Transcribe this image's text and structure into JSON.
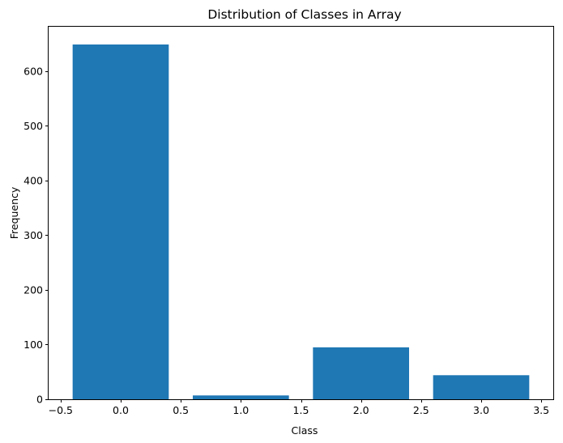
{
  "chart_data": {
    "type": "bar",
    "title": "Distribution of Classes in Array",
    "xlabel": "Class",
    "ylabel": "Frequency",
    "x": [
      0,
      1,
      2,
      3
    ],
    "values": [
      649,
      7,
      95,
      44
    ],
    "bar_width": 0.8,
    "xlim": [
      -0.6,
      3.6
    ],
    "ylim": [
      0,
      681.45
    ],
    "xticks": [
      -0.5,
      0.0,
      0.5,
      1.0,
      1.5,
      2.0,
      2.5,
      3.0,
      3.5
    ],
    "xtick_labels": [
      "−0.5",
      "0.0",
      "0.5",
      "1.0",
      "1.5",
      "2.0",
      "2.5",
      "3.0",
      "3.5"
    ],
    "yticks": [
      0,
      100,
      200,
      300,
      400,
      500,
      600
    ],
    "ytick_labels": [
      "0",
      "100",
      "200",
      "300",
      "400",
      "500",
      "600"
    ],
    "bar_color": "#1f77b4",
    "grid": false,
    "legend": "none"
  }
}
